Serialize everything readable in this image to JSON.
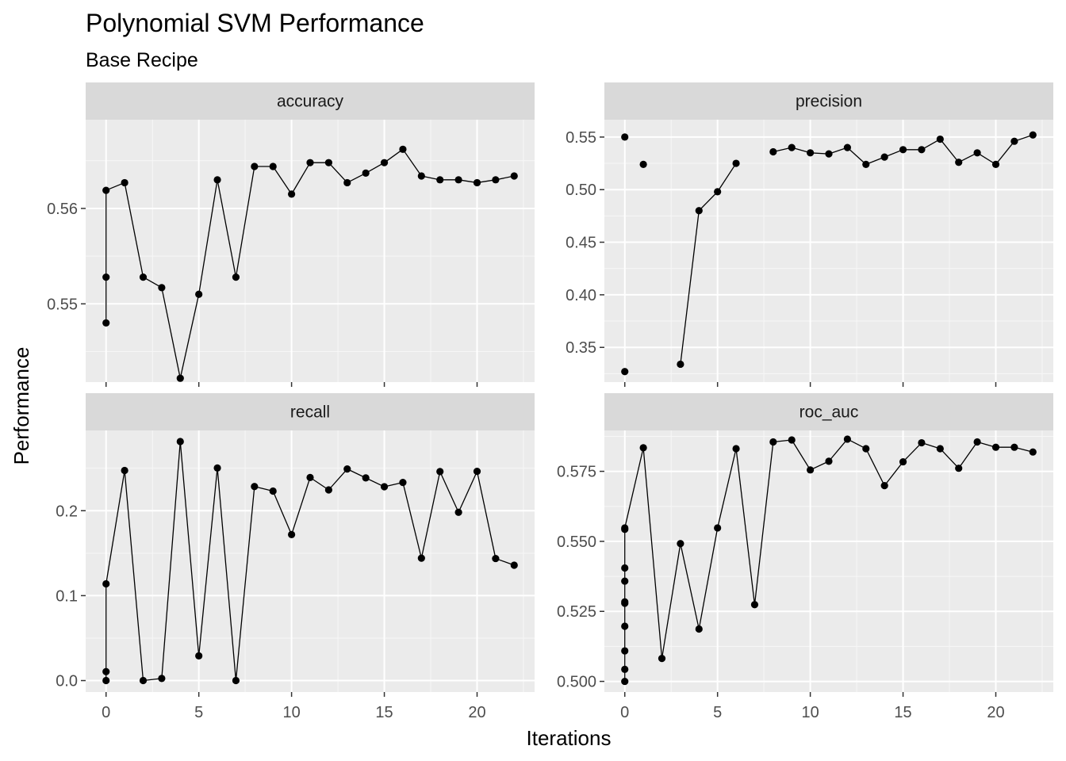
{
  "chart_data": {
    "type": "line",
    "title": "Polynomial SVM Performance",
    "subtitle": "Base Recipe",
    "xlabel": "Iterations",
    "ylabel": "Performance",
    "grid": true,
    "colors": {
      "panel_background": "#ebebeb",
      "strip_background": "#d9d9d9",
      "grid_major": "#ffffff",
      "grid_minor": "#f7f7f7",
      "line": "#000000",
      "point": "#000000",
      "tick_text": "#4d4d4d"
    },
    "x_ticks": [
      0,
      5,
      10,
      15,
      20
    ],
    "xlim": [
      -1.1,
      23.1
    ],
    "panels": [
      {
        "name": "accuracy",
        "ylim": [
          0.5418,
          0.5693
        ],
        "y_ticks": [
          0.55,
          0.56
        ],
        "y_tick_labels": [
          "0.55",
          "0.56"
        ],
        "points": [
          [
            0,
            0.548
          ],
          [
            0,
            0.5528
          ],
          [
            0,
            0.5619
          ],
          [
            1,
            0.5627
          ],
          [
            2,
            0.5528
          ],
          [
            3,
            0.5517
          ],
          [
            4,
            0.5422
          ],
          [
            5,
            0.551
          ],
          [
            6,
            0.563
          ],
          [
            7,
            0.5528
          ],
          [
            8,
            0.5644
          ],
          [
            9,
            0.5644
          ],
          [
            10,
            0.5615
          ],
          [
            11,
            0.5648
          ],
          [
            12,
            0.5648
          ],
          [
            13,
            0.5627
          ],
          [
            14,
            0.5637
          ],
          [
            15,
            0.5648
          ],
          [
            16,
            0.5662
          ],
          [
            17,
            0.5634
          ],
          [
            18,
            0.563
          ],
          [
            19,
            0.563
          ],
          [
            20,
            0.5627
          ],
          [
            21,
            0.563
          ],
          [
            22,
            0.5634
          ]
        ],
        "gaps_after": []
      },
      {
        "name": "precision",
        "ylim": [
          0.317,
          0.5665
        ],
        "y_ticks": [
          0.35,
          0.4,
          0.45,
          0.5,
          0.55
        ],
        "y_tick_labels": [
          "0.35",
          "0.40",
          "0.45",
          "0.50",
          "0.55"
        ],
        "points": [
          [
            0,
            0.327
          ],
          [
            0,
            0.55
          ],
          [
            1,
            0.524
          ],
          [
            3,
            0.334
          ],
          [
            4,
            0.48
          ],
          [
            5,
            0.498
          ],
          [
            6,
            0.525
          ],
          [
            8,
            0.536
          ],
          [
            9,
            0.54
          ],
          [
            10,
            0.535
          ],
          [
            11,
            0.534
          ],
          [
            12,
            0.54
          ],
          [
            13,
            0.524
          ],
          [
            14,
            0.531
          ],
          [
            15,
            0.538
          ],
          [
            16,
            0.538
          ],
          [
            17,
            0.548
          ],
          [
            18,
            0.526
          ],
          [
            19,
            0.535
          ],
          [
            20,
            0.524
          ],
          [
            21,
            0.546
          ],
          [
            22,
            0.552
          ]
        ],
        "gaps_after": [
          0,
          1,
          2,
          6
        ]
      },
      {
        "name": "recall",
        "ylim": [
          -0.0135,
          0.2945
        ],
        "y_ticks": [
          0.0,
          0.1,
          0.2
        ],
        "y_tick_labels": [
          "0.0",
          "0.1",
          "0.2"
        ],
        "points": [
          [
            0,
            0.0
          ],
          [
            0,
            0.0105
          ],
          [
            0,
            0.1139
          ],
          [
            1,
            0.2474
          ],
          [
            2,
            0.0
          ],
          [
            3,
            0.0025
          ],
          [
            4,
            0.2814
          ],
          [
            5,
            0.0291
          ],
          [
            6,
            0.2503
          ],
          [
            7,
            0.0
          ],
          [
            8,
            0.2285
          ],
          [
            9,
            0.2231
          ],
          [
            10,
            0.1719
          ],
          [
            11,
            0.2391
          ],
          [
            12,
            0.2245
          ],
          [
            13,
            0.2491
          ],
          [
            14,
            0.2386
          ],
          [
            15,
            0.2282
          ],
          [
            16,
            0.2333
          ],
          [
            17,
            0.1441
          ],
          [
            18,
            0.2461
          ],
          [
            19,
            0.1981
          ],
          [
            20,
            0.2463
          ],
          [
            21,
            0.1437
          ],
          [
            22,
            0.1358
          ]
        ],
        "gaps_after": []
      },
      {
        "name": "roc_auc",
        "ylim": [
          0.4962,
          0.5896
        ],
        "y_ticks": [
          0.5,
          0.525,
          0.55,
          0.575
        ],
        "y_tick_labels": [
          "0.500",
          "0.525",
          "0.550",
          "0.575"
        ],
        "points": [
          [
            0,
            0.5
          ],
          [
            0,
            0.5043
          ],
          [
            0,
            0.5109
          ],
          [
            0,
            0.5197
          ],
          [
            0,
            0.5279
          ],
          [
            0,
            0.5284
          ],
          [
            0,
            0.5358
          ],
          [
            0,
            0.5405
          ],
          [
            0,
            0.5543
          ],
          [
            0,
            0.5548
          ],
          [
            1,
            0.5834
          ],
          [
            2,
            0.5082
          ],
          [
            3,
            0.5492
          ],
          [
            4,
            0.5187
          ],
          [
            5,
            0.5548
          ],
          [
            6,
            0.5831
          ],
          [
            7,
            0.5274
          ],
          [
            8,
            0.5855
          ],
          [
            9,
            0.5862
          ],
          [
            10,
            0.5755
          ],
          [
            11,
            0.5786
          ],
          [
            12,
            0.5865
          ],
          [
            13,
            0.5831
          ],
          [
            14,
            0.5699
          ],
          [
            15,
            0.5784
          ],
          [
            16,
            0.5852
          ],
          [
            17,
            0.5831
          ],
          [
            18,
            0.5761
          ],
          [
            19,
            0.5855
          ],
          [
            20,
            0.5836
          ],
          [
            21,
            0.5836
          ],
          [
            22,
            0.5819
          ]
        ],
        "gaps_after": []
      }
    ]
  }
}
